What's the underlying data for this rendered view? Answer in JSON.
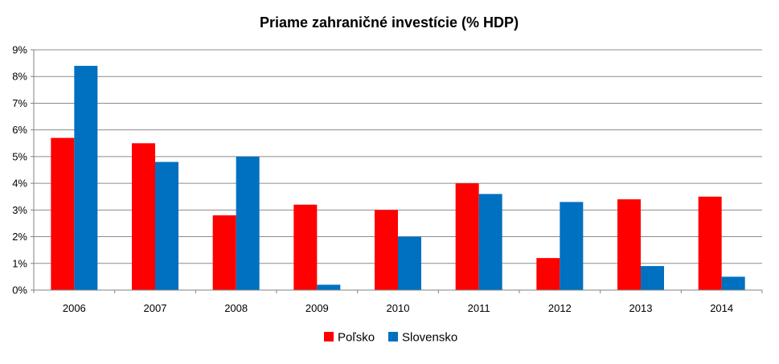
{
  "chart_data": {
    "type": "bar",
    "title": "Priame zahraničné investície (% HDP)",
    "categories": [
      "2006",
      "2007",
      "2008",
      "2009",
      "2010",
      "2011",
      "2012",
      "2013",
      "2014"
    ],
    "series": [
      {
        "name": "Poľsko",
        "color": "#ff0000",
        "values": [
          5.7,
          5.5,
          2.8,
          3.2,
          3.0,
          4.0,
          1.2,
          3.4,
          3.5
        ]
      },
      {
        "name": "Slovensko",
        "color": "#0070c0",
        "values": [
          8.4,
          4.8,
          5.0,
          0.2,
          2.0,
          3.6,
          3.3,
          0.9,
          0.5
        ]
      }
    ],
    "ylim": [
      0,
      9
    ],
    "yticks": [
      "0%",
      "1%",
      "2%",
      "3%",
      "4%",
      "5%",
      "6%",
      "7%",
      "8%",
      "9%"
    ],
    "grid": true,
    "legend_position": "bottom"
  }
}
